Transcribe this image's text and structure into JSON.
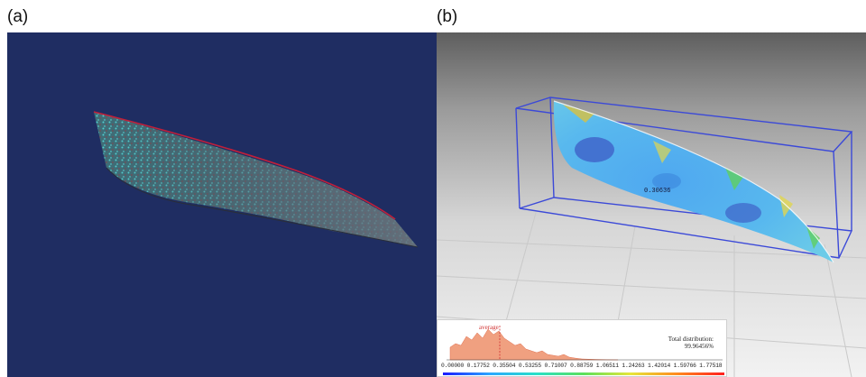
{
  "panels": {
    "a": {
      "label": "(a)"
    },
    "b": {
      "label": "(b)",
      "point_value": "0.30636",
      "legend": {
        "average_label": "average",
        "total_distribution_title": "Total distribution:",
        "total_distribution_value": "99.96456%",
        "ticks": "0.00000 0.17752 0.35504 0.53255 0.71007 0.88759 1.06511 1.24263 1.42014 1.59766 1.77518"
      }
    }
  },
  "colors": {
    "panel_a_background": "#1f2d62",
    "bounding_box": "#3b49d8",
    "histogram_fill": "#f0a080"
  }
}
